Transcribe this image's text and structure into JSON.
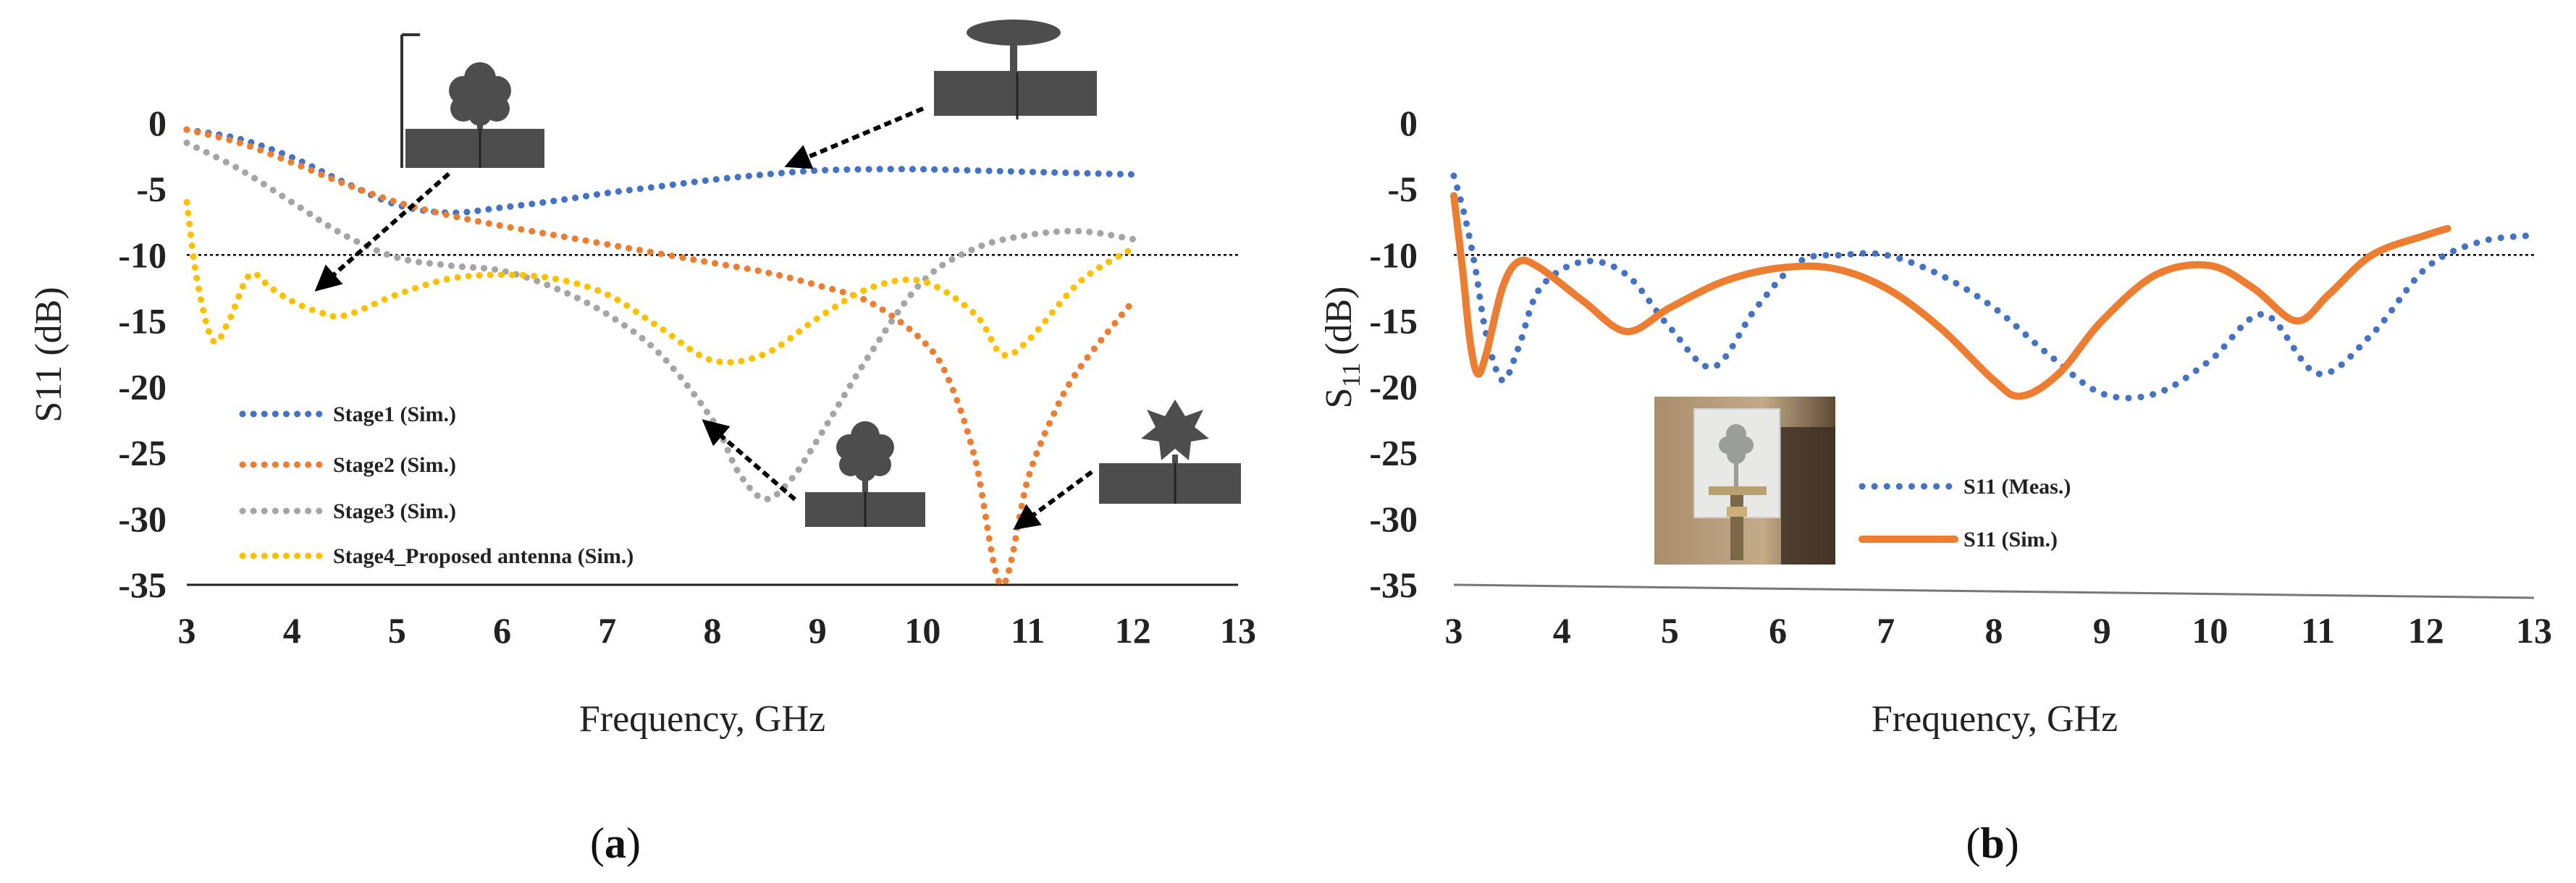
{
  "colors": {
    "stage1": "#4472C4",
    "stage2": "#ED7D31",
    "stage3": "#A5A5A5",
    "stage4": "#FFC000",
    "meas": "#4472C4",
    "sim": "#ED7D31",
    "shape": "#4d4d4d",
    "reference": "#000000"
  },
  "icons": [
    "stage1-antenna-icon",
    "stage2-antenna-icon",
    "stage3-antenna-icon",
    "stage4-antenna-icon",
    "antenna-photo"
  ],
  "chart_data": [
    {
      "type": "line",
      "panel_label": "a",
      "xlabel": "Frequency, GHz",
      "ylabel": "S11 (dB)",
      "xlim": [
        3,
        13
      ],
      "ylim": [
        -35,
        0
      ],
      "xticks": [
        "3",
        "4",
        "5",
        "6",
        "7",
        "8",
        "9",
        "10",
        "11",
        "12",
        "13"
      ],
      "yticks": [
        "0",
        "-5",
        "-10",
        "-15",
        "-20",
        "-25",
        "-30",
        "-35"
      ],
      "reference_line_y": -10,
      "legend_position": "bottom-left",
      "series": [
        {
          "name": "Stage1 (Sim.)",
          "style": "dotted",
          "x": [
            3,
            3.5,
            4,
            4.5,
            5,
            5.5,
            6,
            6.5,
            7,
            7.5,
            8,
            8.5,
            9,
            9.5,
            10,
            10.5,
            11,
            11.5,
            12
          ],
          "y": [
            -0.5,
            -1.2,
            -2.6,
            -4.5,
            -6.2,
            -6.8,
            -6.4,
            -5.9,
            -5.3,
            -4.8,
            -4.3,
            -3.9,
            -3.6,
            -3.5,
            -3.5,
            -3.6,
            -3.7,
            -3.8,
            -3.9
          ]
        },
        {
          "name": "Stage2 (Sim.)",
          "style": "dotted",
          "x": [
            3,
            3.5,
            4,
            4.5,
            5,
            5.5,
            6,
            6.5,
            7,
            7.5,
            8,
            8.5,
            9,
            9.5,
            10,
            10.25,
            10.5,
            10.75,
            11,
            11.25,
            11.5,
            12
          ],
          "y": [
            -0.5,
            -1.5,
            -3.0,
            -4.6,
            -6.0,
            -7.0,
            -7.8,
            -8.5,
            -9.2,
            -9.9,
            -10.6,
            -11.3,
            -12.3,
            -13.6,
            -16.5,
            -19.5,
            -25.5,
            -35.0,
            -27.0,
            -22.0,
            -18.5,
            -13.5
          ]
        },
        {
          "name": "Stage3 (Sim.)",
          "style": "dotted",
          "x": [
            3,
            3.5,
            4,
            4.5,
            5,
            5.5,
            6,
            6.5,
            7,
            7.5,
            8,
            8.25,
            8.5,
            8.75,
            9,
            9.5,
            10,
            10.5,
            11,
            11.5,
            12
          ],
          "y": [
            -1.5,
            -3.5,
            -6.0,
            -8.5,
            -10.2,
            -10.8,
            -11.2,
            -12.5,
            -14.5,
            -17.5,
            -22.5,
            -26.5,
            -28.5,
            -27.0,
            -24.0,
            -17.5,
            -12.0,
            -9.5,
            -8.5,
            -8.2,
            -8.8
          ]
        },
        {
          "name": "Stage4_Proposed antenna (Sim.)",
          "style": "dotted",
          "x": [
            3,
            3.1,
            3.25,
            3.4,
            3.6,
            3.8,
            4,
            4.25,
            4.5,
            5,
            5.5,
            6,
            6.5,
            7,
            7.5,
            8,
            8.5,
            9,
            9.5,
            10,
            10.5,
            10.75,
            11,
            11.5,
            12
          ],
          "y": [
            -6.0,
            -12.0,
            -16.5,
            -15.0,
            -11.5,
            -12.5,
            -13.5,
            -14.3,
            -14.6,
            -13.0,
            -11.8,
            -11.5,
            -11.8,
            -13.0,
            -15.5,
            -18.0,
            -17.5,
            -14.8,
            -12.5,
            -12.0,
            -14.5,
            -17.5,
            -16.5,
            -12.0,
            -9.5
          ]
        }
      ]
    },
    {
      "type": "line",
      "panel_label": "b",
      "xlabel": "Frequency, GHz",
      "ylabel_main": "S",
      "ylabel_sub": "11",
      "ylabel_unit": "(dB)",
      "xlim": [
        3,
        13
      ],
      "ylim": [
        -35,
        0
      ],
      "xticks": [
        "3",
        "4",
        "5",
        "6",
        "7",
        "8",
        "9",
        "10",
        "11",
        "12",
        "13"
      ],
      "yticks": [
        "0",
        "-5",
        "-10",
        "-15",
        "-20",
        "-25",
        "-30",
        "-35"
      ],
      "reference_line_y": -10,
      "legend_position": "bottom-center",
      "series": [
        {
          "name": "S11 (Meas.)",
          "style": "dotted",
          "x": [
            3,
            3.1,
            3.2,
            3.3,
            3.45,
            3.6,
            3.8,
            4.2,
            4.6,
            5,
            5.4,
            5.8,
            6.2,
            6.6,
            7,
            7.5,
            8,
            8.5,
            9,
            9.5,
            10,
            10.5,
            11,
            11.5,
            12,
            12.5,
            13
          ],
          "y": [
            -4.0,
            -7.0,
            -11.0,
            -16.0,
            -19.5,
            -17.0,
            -12.5,
            -10.5,
            -11.5,
            -15.5,
            -18.5,
            -14.0,
            -10.5,
            -10.0,
            -10.0,
            -11.5,
            -14.0,
            -17.5,
            -20.5,
            -20.5,
            -18.0,
            -14.5,
            -19.0,
            -16.0,
            -11.0,
            -9.0,
            -8.5
          ]
        },
        {
          "name": "S11 (Sim.)",
          "style": "solid",
          "x": [
            3,
            3.08,
            3.15,
            3.22,
            3.3,
            3.45,
            3.6,
            3.8,
            4.2,
            4.6,
            5,
            5.5,
            6,
            6.5,
            7,
            7.5,
            8,
            8.25,
            8.6,
            9,
            9.5,
            10,
            10.4,
            10.8,
            11.1,
            11.5,
            12,
            12.2
          ],
          "y": [
            -5.5,
            -11.0,
            -16.5,
            -19.0,
            -17.5,
            -12.5,
            -10.5,
            -11.0,
            -13.5,
            -15.8,
            -14.0,
            -12.0,
            -11.0,
            -11.0,
            -12.5,
            -15.5,
            -19.5,
            -20.7,
            -19.0,
            -15.0,
            -11.5,
            -10.8,
            -12.5,
            -15.0,
            -13.0,
            -10.0,
            -8.5,
            -8.0
          ]
        }
      ]
    }
  ]
}
